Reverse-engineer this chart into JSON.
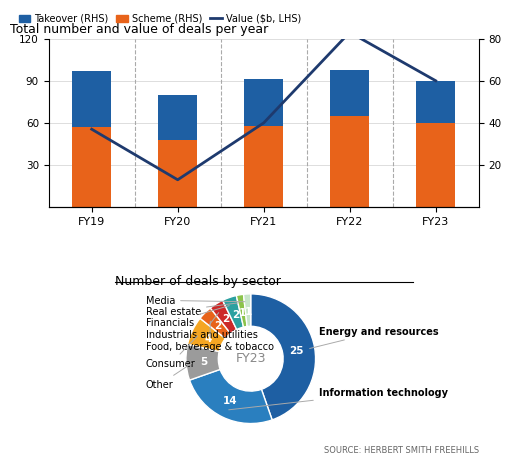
{
  "bar_title": "Total number and value of deals per year",
  "donut_title": "Number of deals by sector",
  "source": "SOURCE: HERBERT SMITH FREEHILLS",
  "categories": [
    "FY19",
    "FY20",
    "FY21",
    "FY22",
    "FY23"
  ],
  "scheme_values": [
    57,
    48,
    58,
    65,
    60
  ],
  "takeover_values": [
    40,
    32,
    33,
    33,
    30
  ],
  "value_line": [
    37,
    13,
    40,
    83,
    60
  ],
  "bar_ylim": [
    0,
    120
  ],
  "bar_yticks": [
    30,
    60,
    90,
    120
  ],
  "line_ylim": [
    0,
    80
  ],
  "line_yticks": [
    20,
    40,
    60,
    80
  ],
  "scheme_color": "#E8631A",
  "takeover_color": "#1E5FA3",
  "line_color": "#1E3A6E",
  "donut_values": [
    25,
    14,
    5,
    4,
    2,
    2,
    2,
    1,
    1
  ],
  "donut_colors": [
    "#1E5FA3",
    "#2A7FBF",
    "#9B9B9B",
    "#F5A623",
    "#E8631A",
    "#CC2929",
    "#2CA0A0",
    "#8BC34A",
    "#C8E6C9"
  ],
  "center_label": "FY23",
  "bg_color": "#FFFFFF"
}
